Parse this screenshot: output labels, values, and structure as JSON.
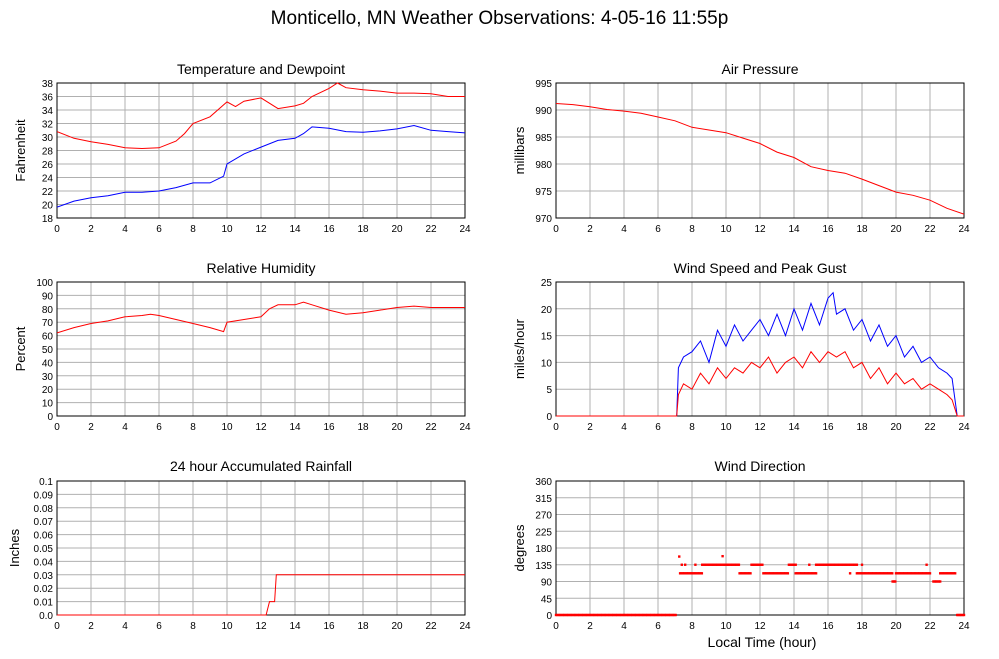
{
  "page_title": "Monticello, MN Weather Observations: 4-05-16 11:55p",
  "common_xlabel": "Local Time (hour)",
  "colors": {
    "grid": "#b0b0b0",
    "red": "#ff0000",
    "blue": "#0000ff",
    "frame": "#000000"
  },
  "chart_data": [
    {
      "id": "temp",
      "type": "line",
      "title": "Temperature and Dewpoint",
      "ylabel": "Fahrenheit",
      "xlim": [
        0,
        24
      ],
      "ylim": [
        18,
        38
      ],
      "xticks": [
        0,
        2,
        4,
        6,
        8,
        10,
        12,
        14,
        16,
        18,
        20,
        22,
        24
      ],
      "yticks": [
        18,
        20,
        22,
        24,
        26,
        28,
        30,
        32,
        34,
        36,
        38
      ],
      "grid": true,
      "series": [
        {
          "name": "Temperature",
          "color": "#ff0000",
          "x": [
            0,
            1,
            2,
            3,
            4,
            5,
            6,
            7,
            7.5,
            8,
            9,
            10,
            10.5,
            11,
            12,
            13,
            14,
            14.5,
            15,
            16,
            16.5,
            17,
            18,
            19,
            20,
            21,
            22,
            23,
            24
          ],
          "y": [
            30.8,
            29.8,
            29.3,
            28.9,
            28.4,
            28.3,
            28.4,
            29.4,
            30.5,
            32,
            33,
            35.2,
            34.5,
            35.3,
            35.8,
            34.2,
            34.6,
            35,
            36,
            37.2,
            38,
            37.3,
            37,
            36.8,
            36.5,
            36.5,
            36.4,
            36,
            36
          ]
        },
        {
          "name": "Dewpoint",
          "color": "#0000ff",
          "x": [
            0,
            1,
            2,
            3,
            4,
            5,
            6,
            7,
            8,
            9,
            9.8,
            10,
            11,
            12,
            13,
            14,
            14.5,
            15,
            16,
            17,
            18,
            19,
            20,
            21,
            22,
            23,
            24
          ],
          "y": [
            19.6,
            20.5,
            21,
            21.3,
            21.8,
            21.8,
            22,
            22.5,
            23.2,
            23.2,
            24.2,
            26,
            27.5,
            28.5,
            29.5,
            29.8,
            30.5,
            31.5,
            31.3,
            30.8,
            30.7,
            30.9,
            31.2,
            31.7,
            31,
            30.8,
            30.6
          ]
        }
      ]
    },
    {
      "id": "pressure",
      "type": "line",
      "title": "Air Pressure",
      "ylabel": "millibars",
      "xlim": [
        0,
        24
      ],
      "ylim": [
        970,
        995
      ],
      "xticks": [
        0,
        2,
        4,
        6,
        8,
        10,
        12,
        14,
        16,
        18,
        20,
        22,
        24
      ],
      "yticks": [
        970,
        975,
        980,
        985,
        990,
        995
      ],
      "grid": true,
      "series": [
        {
          "name": "Pressure",
          "color": "#ff0000",
          "x": [
            0,
            1,
            2,
            3,
            4,
            5,
            6,
            7,
            8,
            9,
            10,
            11,
            12,
            13,
            14,
            15,
            16,
            17,
            18,
            19,
            20,
            21,
            22,
            23,
            24
          ],
          "y": [
            991.2,
            991,
            990.6,
            990.1,
            989.8,
            989.4,
            988.7,
            988,
            986.8,
            986.3,
            985.8,
            984.8,
            983.8,
            982.2,
            981.2,
            979.5,
            978.8,
            978.3,
            977.2,
            976,
            974.8,
            974.2,
            973.3,
            971.8,
            970.7
          ]
        }
      ]
    },
    {
      "id": "humidity",
      "type": "line",
      "title": "Relative Humidity",
      "ylabel": "Percent",
      "xlim": [
        0,
        24
      ],
      "ylim": [
        0,
        100
      ],
      "xticks": [
        0,
        2,
        4,
        6,
        8,
        10,
        12,
        14,
        16,
        18,
        20,
        22,
        24
      ],
      "yticks": [
        0,
        10,
        20,
        30,
        40,
        50,
        60,
        70,
        80,
        90,
        100
      ],
      "grid": true,
      "series": [
        {
          "name": "Humidity",
          "color": "#ff0000",
          "x": [
            0,
            1,
            2,
            3,
            4,
            5,
            5.5,
            6,
            7,
            8,
            9,
            9.8,
            10,
            11,
            12,
            12.5,
            13,
            14,
            14.5,
            15,
            16,
            17,
            18,
            19,
            20,
            21,
            22,
            23,
            24
          ],
          "y": [
            62,
            66,
            69,
            71,
            74,
            75,
            76,
            75,
            72,
            69,
            66,
            63,
            70,
            72,
            74,
            80,
            83,
            83,
            85,
            83,
            79,
            76,
            77,
            79,
            81,
            82,
            81,
            81,
            81
          ]
        }
      ]
    },
    {
      "id": "wind",
      "type": "line",
      "title": "Wind Speed and Peak Gust",
      "ylabel": "miles/hour",
      "xlim": [
        0,
        24
      ],
      "ylim": [
        0,
        25
      ],
      "xticks": [
        0,
        2,
        4,
        6,
        8,
        10,
        12,
        14,
        16,
        18,
        20,
        22,
        24
      ],
      "yticks": [
        0,
        5,
        10,
        15,
        20,
        25
      ],
      "grid": true,
      "series": [
        {
          "name": "Peak Gust",
          "color": "#0000ff",
          "x": [
            0,
            7.1,
            7.2,
            7.5,
            8,
            8.5,
            9,
            9.5,
            10,
            10.5,
            11,
            11.5,
            12,
            12.5,
            13,
            13.5,
            14,
            14.5,
            15,
            15.5,
            16,
            16.3,
            16.5,
            17,
            17.5,
            18,
            18.5,
            19,
            19.5,
            20,
            20.5,
            21,
            21.5,
            22,
            22.5,
            23,
            23.3,
            23.6,
            24
          ],
          "y": [
            0,
            0,
            9,
            11,
            12,
            14,
            10,
            16,
            13,
            17,
            14,
            16,
            18,
            15,
            19,
            15,
            20,
            16,
            21,
            17,
            22,
            23,
            19,
            20,
            16,
            18,
            14,
            17,
            13,
            15,
            11,
            13,
            10,
            11,
            9,
            8,
            7,
            0,
            0
          ]
        },
        {
          "name": "Wind Speed",
          "color": "#ff0000",
          "x": [
            0,
            7.1,
            7.2,
            7.5,
            8,
            8.5,
            9,
            9.5,
            10,
            10.5,
            11,
            11.5,
            12,
            12.5,
            13,
            13.5,
            14,
            14.5,
            15,
            15.5,
            16,
            16.5,
            17,
            17.5,
            18,
            18.5,
            19,
            19.5,
            20,
            20.5,
            21,
            21.5,
            22,
            22.5,
            23,
            23.3,
            23.6,
            24
          ],
          "y": [
            0,
            0,
            4,
            6,
            5,
            8,
            6,
            9,
            7,
            9,
            8,
            10,
            9,
            11,
            8,
            10,
            11,
            9,
            12,
            10,
            12,
            11,
            12,
            9,
            10,
            7,
            9,
            6,
            8,
            6,
            7,
            5,
            6,
            5,
            4,
            3,
            0,
            0
          ]
        }
      ]
    },
    {
      "id": "rain",
      "type": "line",
      "title": "24 hour Accumulated Rainfall",
      "ylabel": "Inches",
      "xlim": [
        0,
        24
      ],
      "ylim": [
        0,
        0.1
      ],
      "xticks": [
        0,
        2,
        4,
        6,
        8,
        10,
        12,
        14,
        16,
        18,
        20,
        22,
        24
      ],
      "yticks": [
        0.0,
        0.01,
        0.02,
        0.03,
        0.04,
        0.05,
        0.06,
        0.07,
        0.08,
        0.09,
        0.1
      ],
      "yticklabels": [
        "0.0",
        "0.01",
        "0.02",
        "0.03",
        "0.04",
        "0.05",
        "0.06",
        "0.07",
        "0.08",
        "0.09",
        "0.1"
      ],
      "grid": true,
      "series": [
        {
          "name": "Rainfall",
          "color": "#ff0000",
          "x": [
            0,
            12.3,
            12.5,
            12.8,
            12.9,
            24
          ],
          "y": [
            0,
            0,
            0.01,
            0.01,
            0.03,
            0.03
          ]
        }
      ]
    },
    {
      "id": "direction",
      "type": "scatter",
      "title": "Wind Direction",
      "ylabel": "degrees",
      "xlim": [
        0,
        24
      ],
      "ylim": [
        0,
        360
      ],
      "xticks": [
        0,
        2,
        4,
        6,
        8,
        10,
        12,
        14,
        16,
        18,
        20,
        22,
        24
      ],
      "yticks": [
        0,
        45,
        90,
        135,
        180,
        225,
        270,
        315,
        360
      ],
      "grid": true,
      "segments": [
        {
          "x0": 0,
          "x1": 7.1,
          "y": 0
        },
        {
          "x0": 7.3,
          "x1": 8.6,
          "y": 112
        },
        {
          "x0": 8.6,
          "x1": 10.8,
          "y": 135
        },
        {
          "x0": 10.8,
          "x1": 11.5,
          "y": 112
        },
        {
          "x0": 11.5,
          "x1": 12.2,
          "y": 135
        },
        {
          "x0": 12.2,
          "x1": 13.7,
          "y": 112
        },
        {
          "x0": 13.7,
          "x1": 14.1,
          "y": 135
        },
        {
          "x0": 14.1,
          "x1": 15.3,
          "y": 112
        },
        {
          "x0": 15.3,
          "x1": 17.7,
          "y": 135
        },
        {
          "x0": 17.7,
          "x1": 19.8,
          "y": 112
        },
        {
          "x0": 19.8,
          "x1": 20.0,
          "y": 90
        },
        {
          "x0": 20.0,
          "x1": 22.0,
          "y": 112
        },
        {
          "x0": 22.2,
          "x1": 22.6,
          "y": 90
        },
        {
          "x0": 22.6,
          "x1": 23.5,
          "y": 112
        },
        {
          "x0": 23.6,
          "x1": 24,
          "y": 0
        }
      ],
      "points": [
        {
          "x": 7.25,
          "y": 157
        },
        {
          "x": 7.4,
          "y": 135
        },
        {
          "x": 7.6,
          "y": 135
        },
        {
          "x": 9.8,
          "y": 158
        },
        {
          "x": 21.8,
          "y": 135
        },
        {
          "x": 8.2,
          "y": 135
        },
        {
          "x": 14.9,
          "y": 135
        },
        {
          "x": 17.3,
          "y": 112
        },
        {
          "x": 18.0,
          "y": 135
        }
      ]
    }
  ]
}
